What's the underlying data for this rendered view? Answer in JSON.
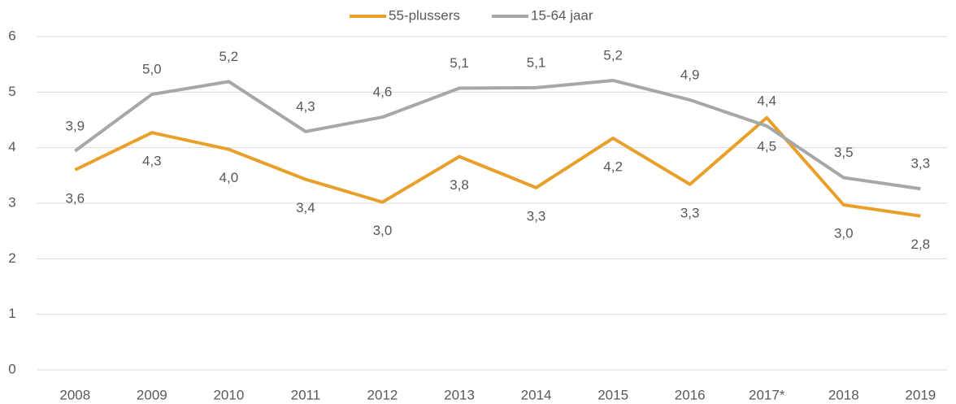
{
  "chart_data": {
    "type": "line",
    "categories": [
      "2008",
      "2009",
      "2010",
      "2011",
      "2012",
      "2013",
      "2014",
      "2015",
      "2016",
      "2017*",
      "2018",
      "2019"
    ],
    "series": [
      {
        "name": "55-plussers",
        "color": "#E9A02A",
        "values": [
          3.6,
          4.27,
          3.97,
          3.43,
          3.02,
          3.84,
          3.28,
          4.17,
          3.34,
          4.54,
          2.97,
          2.77
        ],
        "value_labels": [
          "3,6",
          "4,3",
          "4,0",
          "3,4",
          "3,0",
          "3,8",
          "3,3",
          "4,2",
          "3,3",
          "4,5",
          "3,0",
          "2,8"
        ]
      },
      {
        "name": "15-64 jaar",
        "color": "#A5A7AA",
        "values": [
          3.94,
          4.96,
          5.19,
          4.29,
          4.55,
          5.07,
          5.08,
          5.21,
          4.86,
          4.39,
          3.46,
          3.26
        ],
        "value_labels": [
          "3,9",
          "5,0",
          "5,2",
          "4,3",
          "4,6",
          "5,1",
          "5,1",
          "5,2",
          "4,9",
          "4,4",
          "3,5",
          "3,3"
        ]
      }
    ],
    "ylim": [
      0,
      6
    ],
    "yticks": [
      0,
      1,
      2,
      3,
      4,
      5,
      6
    ],
    "grid": true,
    "legend": "top"
  }
}
